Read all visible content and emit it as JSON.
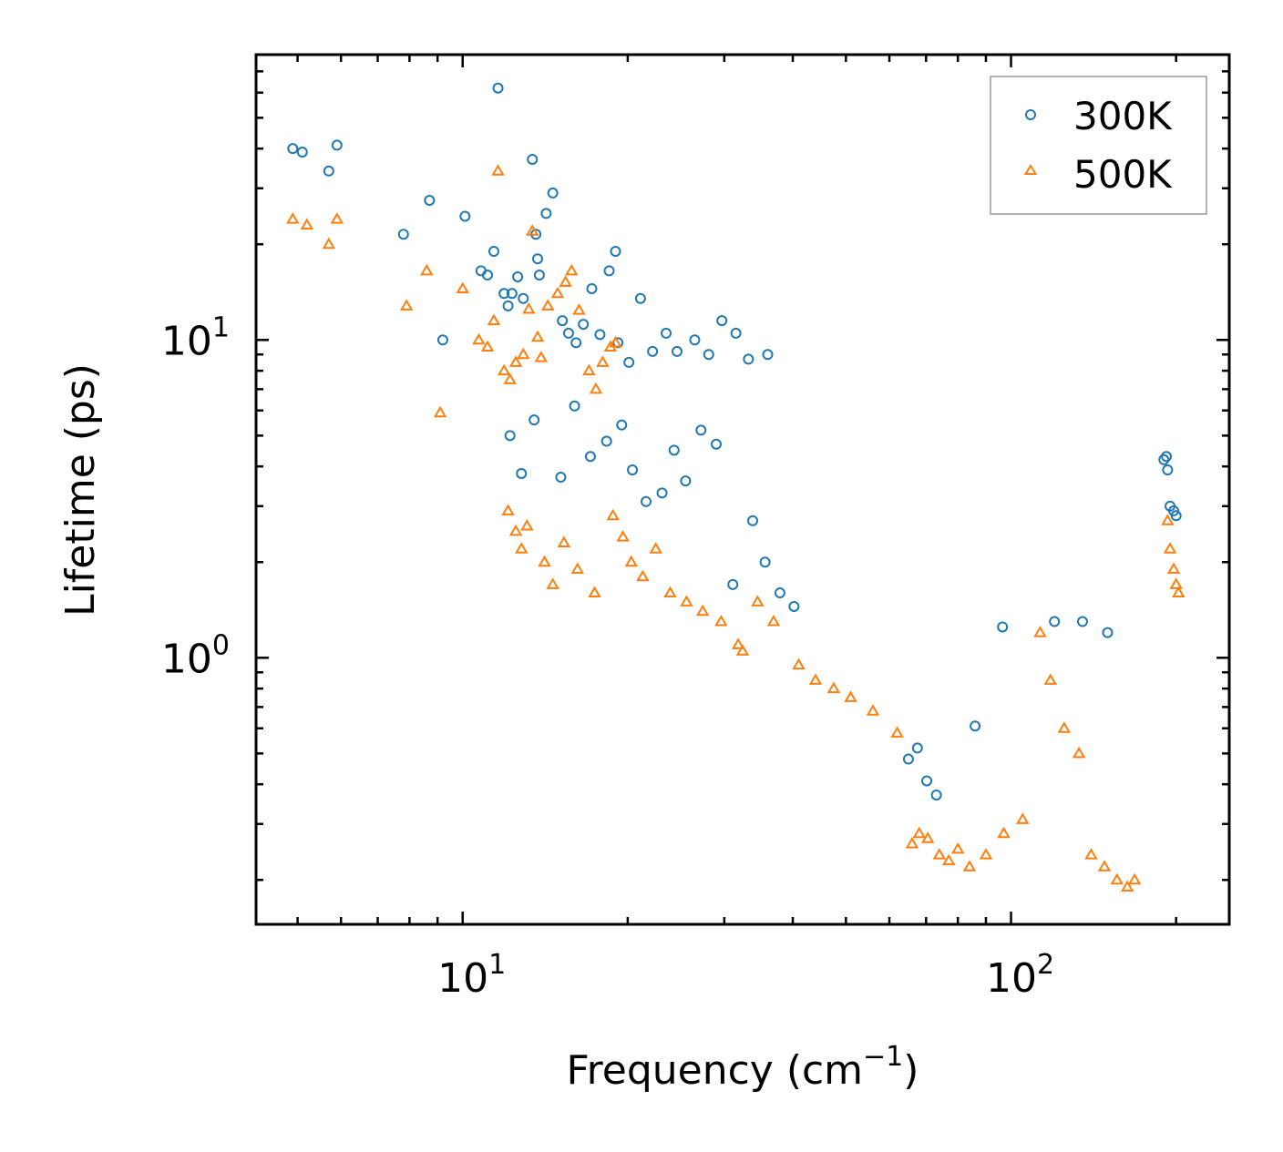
{
  "chart_data": {
    "type": "scatter",
    "title": "",
    "xlabel": "Frequency (cm",
    "xlabel_sup": "−1",
    "xlabel_end": ")",
    "ylabel": "Lifetime (ps)",
    "xscale": "log",
    "yscale": "log",
    "xlim": [
      4.2,
      250
    ],
    "ylim": [
      0.145,
      79
    ],
    "x_major_ticks": [
      {
        "value": 10,
        "base": "10",
        "exp": "1"
      },
      {
        "value": 100,
        "base": "10",
        "exp": "2"
      }
    ],
    "y_major_ticks": [
      {
        "value": 1,
        "base": "10",
        "exp": "0"
      },
      {
        "value": 10,
        "base": "10",
        "exp": "1"
      }
    ],
    "legend_position": "top-right",
    "series": [
      {
        "name": "300K",
        "marker": "circle",
        "color": "#1f77b4",
        "points": [
          [
            4.9,
            40
          ],
          [
            5.1,
            39
          ],
          [
            5.7,
            34
          ],
          [
            5.9,
            41
          ],
          [
            7.8,
            21.5
          ],
          [
            8.7,
            27.5
          ],
          [
            9.2,
            10
          ],
          [
            10.1,
            24.5
          ],
          [
            10.8,
            16.5
          ],
          [
            11.1,
            16
          ],
          [
            11.4,
            19
          ],
          [
            11.6,
            62
          ],
          [
            11.9,
            14
          ],
          [
            12.1,
            12.8
          ],
          [
            12.3,
            14
          ],
          [
            12.6,
            15.8
          ],
          [
            12.9,
            13.5
          ],
          [
            13.4,
            37
          ],
          [
            13.6,
            21.5
          ],
          [
            13.7,
            18
          ],
          [
            13.8,
            16
          ],
          [
            14.2,
            25
          ],
          [
            14.6,
            29
          ],
          [
            15.2,
            11.5
          ],
          [
            15.6,
            10.5
          ],
          [
            16.1,
            9.8
          ],
          [
            16.6,
            11.2
          ],
          [
            17.2,
            14.5
          ],
          [
            17.8,
            10.4
          ],
          [
            18.5,
            16.5
          ],
          [
            19.0,
            19
          ],
          [
            19.2,
            9.8
          ],
          [
            20.1,
            8.5
          ],
          [
            21.1,
            13.5
          ],
          [
            22.2,
            9.2
          ],
          [
            23.5,
            10.5
          ],
          [
            24.6,
            9.2
          ],
          [
            26.5,
            10
          ],
          [
            28.1,
            9
          ],
          [
            29.7,
            11.5
          ],
          [
            31.5,
            10.5
          ],
          [
            33.2,
            8.7
          ],
          [
            36.0,
            9
          ],
          [
            12.2,
            5
          ],
          [
            12.8,
            3.8
          ],
          [
            13.5,
            5.6
          ],
          [
            15.1,
            3.7
          ],
          [
            16.0,
            6.2
          ],
          [
            17.1,
            4.3
          ],
          [
            18.3,
            4.8
          ],
          [
            19.5,
            5.4
          ],
          [
            20.4,
            3.9
          ],
          [
            21.6,
            3.1
          ],
          [
            23.1,
            3.3
          ],
          [
            24.3,
            4.5
          ],
          [
            25.5,
            3.6
          ],
          [
            27.2,
            5.2
          ],
          [
            29.0,
            4.7
          ],
          [
            31.1,
            1.7
          ],
          [
            33.8,
            2.7
          ],
          [
            35.6,
            2.0
          ],
          [
            37.9,
            1.6
          ],
          [
            40.2,
            1.45
          ],
          [
            65.0,
            0.48
          ],
          [
            67.5,
            0.52
          ],
          [
            70.2,
            0.41
          ],
          [
            73.1,
            0.37
          ],
          [
            86.0,
            0.61
          ],
          [
            96.5,
            1.25
          ],
          [
            120,
            1.3
          ],
          [
            135,
            1.3
          ],
          [
            150,
            1.2
          ],
          [
            190,
            4.2
          ],
          [
            192,
            4.3
          ],
          [
            193,
            3.9
          ],
          [
            195,
            3.0
          ],
          [
            198,
            2.9
          ],
          [
            200,
            2.8
          ]
        ]
      },
      {
        "name": "500K",
        "marker": "triangle",
        "color": "#ff7f0e",
        "points": [
          [
            4.9,
            24
          ],
          [
            5.2,
            23
          ],
          [
            5.7,
            20
          ],
          [
            5.9,
            24
          ],
          [
            7.9,
            12.8
          ],
          [
            8.6,
            16.5
          ],
          [
            9.1,
            5.9
          ],
          [
            10.0,
            14.5
          ],
          [
            10.7,
            10
          ],
          [
            11.1,
            9.5
          ],
          [
            11.4,
            11.5
          ],
          [
            11.6,
            34
          ],
          [
            11.9,
            8
          ],
          [
            12.2,
            7.5
          ],
          [
            12.5,
            8.5
          ],
          [
            12.9,
            9
          ],
          [
            13.2,
            12.5
          ],
          [
            13.4,
            22
          ],
          [
            13.7,
            10.2
          ],
          [
            13.9,
            8.8
          ],
          [
            14.3,
            12.8
          ],
          [
            14.9,
            14
          ],
          [
            15.4,
            15.2
          ],
          [
            15.8,
            16.5
          ],
          [
            16.3,
            12.4
          ],
          [
            17.0,
            8
          ],
          [
            17.5,
            7
          ],
          [
            18.0,
            8.5
          ],
          [
            18.6,
            9.5
          ],
          [
            19.0,
            9.8
          ],
          [
            12.1,
            2.9
          ],
          [
            12.5,
            2.5
          ],
          [
            12.8,
            2.2
          ],
          [
            13.1,
            2.6
          ],
          [
            14.1,
            2.0
          ],
          [
            14.6,
            1.7
          ],
          [
            15.3,
            2.3
          ],
          [
            16.2,
            1.9
          ],
          [
            17.4,
            1.6
          ],
          [
            18.8,
            2.8
          ],
          [
            19.6,
            2.4
          ],
          [
            20.3,
            2.0
          ],
          [
            21.3,
            1.8
          ],
          [
            22.5,
            2.2
          ],
          [
            23.9,
            1.6
          ],
          [
            25.6,
            1.5
          ],
          [
            27.4,
            1.4
          ],
          [
            29.6,
            1.3
          ],
          [
            31.8,
            1.1
          ],
          [
            32.4,
            1.05
          ],
          [
            34.5,
            1.5
          ],
          [
            36.9,
            1.3
          ],
          [
            41.0,
            0.95
          ],
          [
            44.0,
            0.85
          ],
          [
            47.5,
            0.8
          ],
          [
            51.0,
            0.75
          ],
          [
            56.0,
            0.68
          ],
          [
            62.0,
            0.58
          ],
          [
            66.0,
            0.26
          ],
          [
            68.0,
            0.28
          ],
          [
            70.5,
            0.27
          ],
          [
            74.0,
            0.24
          ],
          [
            77.0,
            0.23
          ],
          [
            80.0,
            0.25
          ],
          [
            84.0,
            0.22
          ],
          [
            90.0,
            0.24
          ],
          [
            97.0,
            0.28
          ],
          [
            105,
            0.31
          ],
          [
            113,
            1.2
          ],
          [
            118,
            0.85
          ],
          [
            125,
            0.6
          ],
          [
            133,
            0.5
          ],
          [
            140,
            0.24
          ],
          [
            148,
            0.22
          ],
          [
            156,
            0.2
          ],
          [
            163,
            0.19
          ],
          [
            168,
            0.2
          ],
          [
            193,
            2.7
          ],
          [
            195,
            2.2
          ],
          [
            198,
            1.9
          ],
          [
            200,
            1.7
          ],
          [
            202,
            1.6
          ]
        ]
      }
    ]
  }
}
